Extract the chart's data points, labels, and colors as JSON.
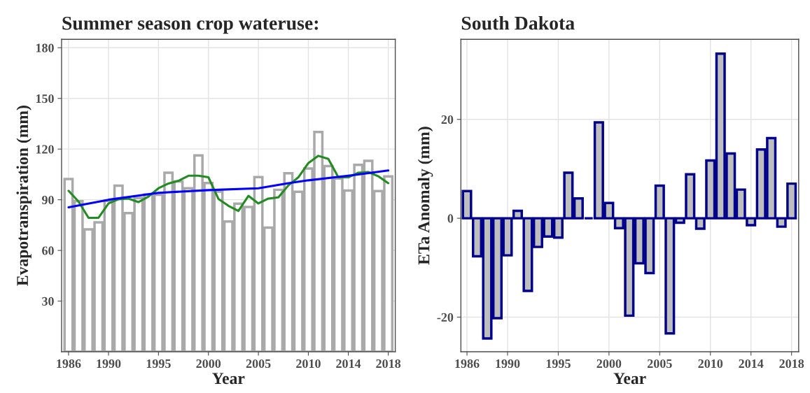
{
  "chart_data": [
    {
      "type": "bar",
      "title": "Summer season crop wateruse:",
      "xlabel": "Year",
      "ylabel": "Evapotranspiration (mm)",
      "x": [
        1986,
        1987,
        1988,
        1989,
        1990,
        1991,
        1992,
        1993,
        1994,
        1995,
        1996,
        1997,
        1998,
        1999,
        2000,
        2001,
        2002,
        2003,
        2004,
        2005,
        2006,
        2007,
        2008,
        2009,
        2010,
        2011,
        2012,
        2013,
        2014,
        2015,
        2016,
        2017,
        2018
      ],
      "series": [
        {
          "color": "#a9a9a9",
          "values": [
            102.3,
            89.1,
            72.5,
            76.6,
            89.3,
            98.3,
            82.1,
            91.0,
            93.1,
            92.9,
            106.0,
            100.8,
            96.8,
            116.2,
            99.9,
            94.8,
            77.1,
            87.7,
            85.7,
            103.4,
            73.5,
            95.9,
            105.7,
            94.7,
            108.5,
            130.1,
            109.9,
            102.6,
            95.4,
            110.7,
            113.0,
            95.1,
            103.8
          ]
        },
        {
          "type": "line",
          "color": "#228b22",
          "values": [
            95.3,
            88.9,
            79.3,
            79.3,
            87.8,
            90.3,
            90.7,
            88.6,
            91.9,
            96.8,
            99.6,
            101.2,
            104.2,
            104.2,
            103.3,
            90.5,
            86.4,
            83.4,
            92.3,
            87.8,
            90.7,
            91.4,
            98.5,
            103.3,
            111.7,
            116.0,
            114.2,
            103.3,
            103.3,
            106.0,
            106.4,
            103.9,
            99.8
          ]
        },
        {
          "type": "line",
          "color": "#0000ff",
          "x": [
            1986,
            1990,
            1995,
            2000,
            2005,
            2008,
            2010,
            2014,
            2018
          ],
          "values": [
            85.5,
            90.0,
            94.1,
            95.7,
            96.8,
            99.8,
            101.5,
            104.2,
            107.3
          ]
        }
      ],
      "xlim": [
        1985.3,
        2018.7
      ],
      "xticks": [
        1986,
        1990,
        1995,
        2000,
        2005,
        2010,
        2014,
        2018
      ],
      "ylim": [
        0,
        185
      ],
      "yticks": [
        30,
        60,
        90,
        120,
        150,
        180
      ],
      "grid": true
    },
    {
      "type": "bar",
      "title": "South Dakota",
      "xlabel": "Year",
      "ylabel": "ETa Anomaly (mm)",
      "x": [
        1986,
        1987,
        1988,
        1989,
        1990,
        1991,
        1992,
        1993,
        1994,
        1995,
        1996,
        1997,
        1998,
        1999,
        2000,
        2001,
        2002,
        2003,
        2004,
        2005,
        2006,
        2007,
        2008,
        2009,
        2010,
        2011,
        2012,
        2013,
        2014,
        2015,
        2016,
        2017,
        2018
      ],
      "series": [
        {
          "color": "#00008b",
          "values": [
            5.5,
            -7.7,
            -24.3,
            -20.2,
            -7.5,
            1.5,
            -14.7,
            -5.8,
            -3.7,
            -3.9,
            9.2,
            4.0,
            0,
            19.4,
            3.1,
            -2.0,
            -19.7,
            -9.1,
            -11.1,
            6.6,
            -23.3,
            -0.9,
            8.9,
            -2.1,
            11.7,
            33.3,
            13.1,
            5.8,
            -1.4,
            13.9,
            16.2,
            -1.7,
            7.0
          ]
        }
      ],
      "xlim": [
        1985.4,
        2018.7
      ],
      "xticks": [
        1986,
        1990,
        1995,
        2000,
        2005,
        2010,
        2014,
        2018
      ],
      "ylim": [
        -27,
        36.2
      ],
      "yticks": [
        -20,
        0,
        20
      ],
      "grid": true
    }
  ]
}
